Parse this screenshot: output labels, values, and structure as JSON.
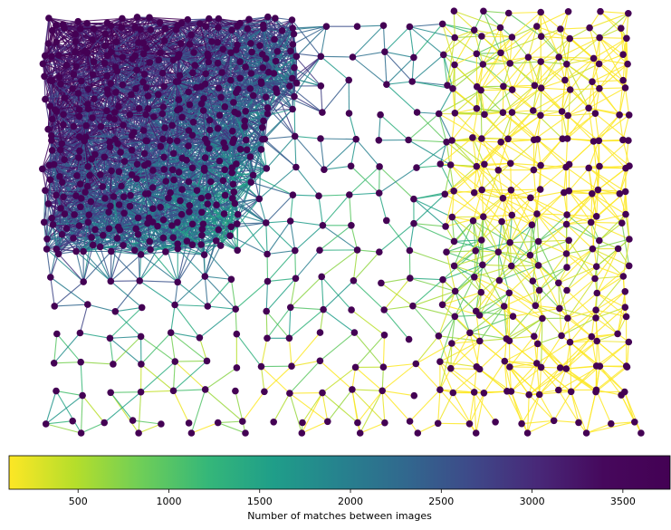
{
  "chart_data": {
    "type": "graph",
    "colormap": "viridis_r",
    "colorbar": {
      "label": "Number of matches between images",
      "min": 120,
      "max": 3760,
      "ticks": [
        500,
        1000,
        1500,
        2000,
        2500,
        3000,
        3500
      ],
      "tick_labels": [
        "500",
        "1000",
        "1500",
        "2000",
        "2500",
        "3000",
        "3500"
      ],
      "orientation": "horizontal"
    },
    "node_color": "#440154",
    "edge_color_range": [
      "#fde725",
      "#440154"
    ],
    "grid": false,
    "axes_visible": false
  }
}
